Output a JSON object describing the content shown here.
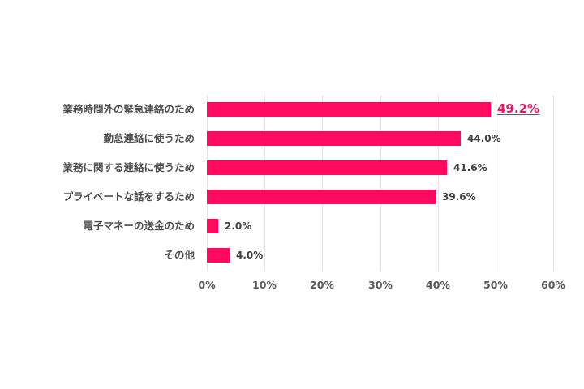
{
  "chart_data": {
    "type": "bar",
    "orientation": "horizontal",
    "title": "",
    "xlabel": "",
    "ylabel": "",
    "categories": [
      "業務時間外の緊急連絡のため",
      "勤怠連絡に使うため",
      "業務に関する連絡に使うため",
      "プライベートな話をするため",
      "電子マネーの送金のため",
      "その他"
    ],
    "values": [
      49.2,
      44.0,
      41.6,
      39.6,
      2.0,
      4.0
    ],
    "value_labels": [
      "49.2%",
      "44.0%",
      "41.6%",
      "39.6%",
      "2.0%",
      "4.0%"
    ],
    "highlighted_index": 0,
    "xlim": [
      0,
      60
    ],
    "x_ticks": [
      0,
      10,
      20,
      30,
      40,
      50,
      60
    ],
    "x_tick_labels": [
      "0%",
      "10%",
      "20%",
      "30%",
      "40%",
      "50%",
      "60%"
    ],
    "grid": "vertical",
    "legend": "none",
    "colors": {
      "bar": "#ff0a5f",
      "highlight_label": "#e8196a",
      "label": "#404040",
      "grid": "#e4e4e4"
    }
  }
}
